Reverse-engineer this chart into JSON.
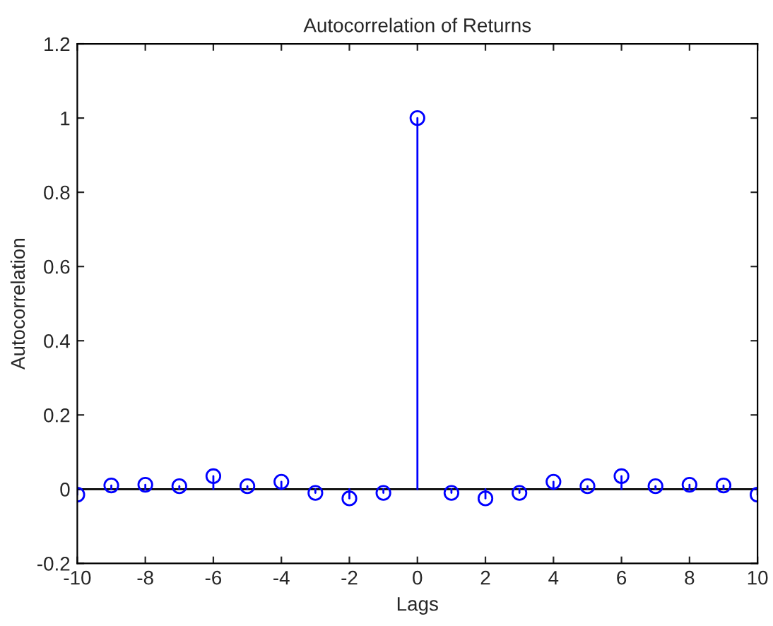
{
  "chart_data": {
    "type": "lollipop",
    "title": "Autocorrelation of Returns",
    "xlabel": "Lags",
    "ylabel": "Autocorrelation",
    "x": [
      -10,
      -9,
      -8,
      -7,
      -6,
      -5,
      -4,
      -3,
      -2,
      -1,
      0,
      1,
      2,
      3,
      4,
      5,
      6,
      7,
      8,
      9,
      10
    ],
    "series": [
      {
        "color": "#0000ff",
        "values": [
          -0.015,
          0.01,
          0.012,
          0.008,
          0.035,
          0.008,
          0.02,
          -0.01,
          -0.025,
          -0.01,
          1,
          -0.01,
          -0.025,
          -0.01,
          0.02,
          0.008,
          0.035,
          0.008,
          0.012,
          0.01,
          -0.015
        ]
      }
    ],
    "ref_lines": [
      {
        "axis": "y",
        "value": 0,
        "color": "#000000"
      }
    ],
    "marker": "circle",
    "grid": false,
    "xlim": [
      -10,
      10
    ],
    "xticks": [
      -10,
      -8,
      -6,
      -4,
      -2,
      0,
      2,
      4,
      6,
      8,
      10
    ],
    "ylim": [
      -0.2,
      1.2
    ],
    "yticks": [
      {
        "value": -0.2,
        "label": "-0.2"
      },
      0,
      0.2,
      0.4,
      0.6,
      0.8,
      1,
      1.2
    ]
  }
}
